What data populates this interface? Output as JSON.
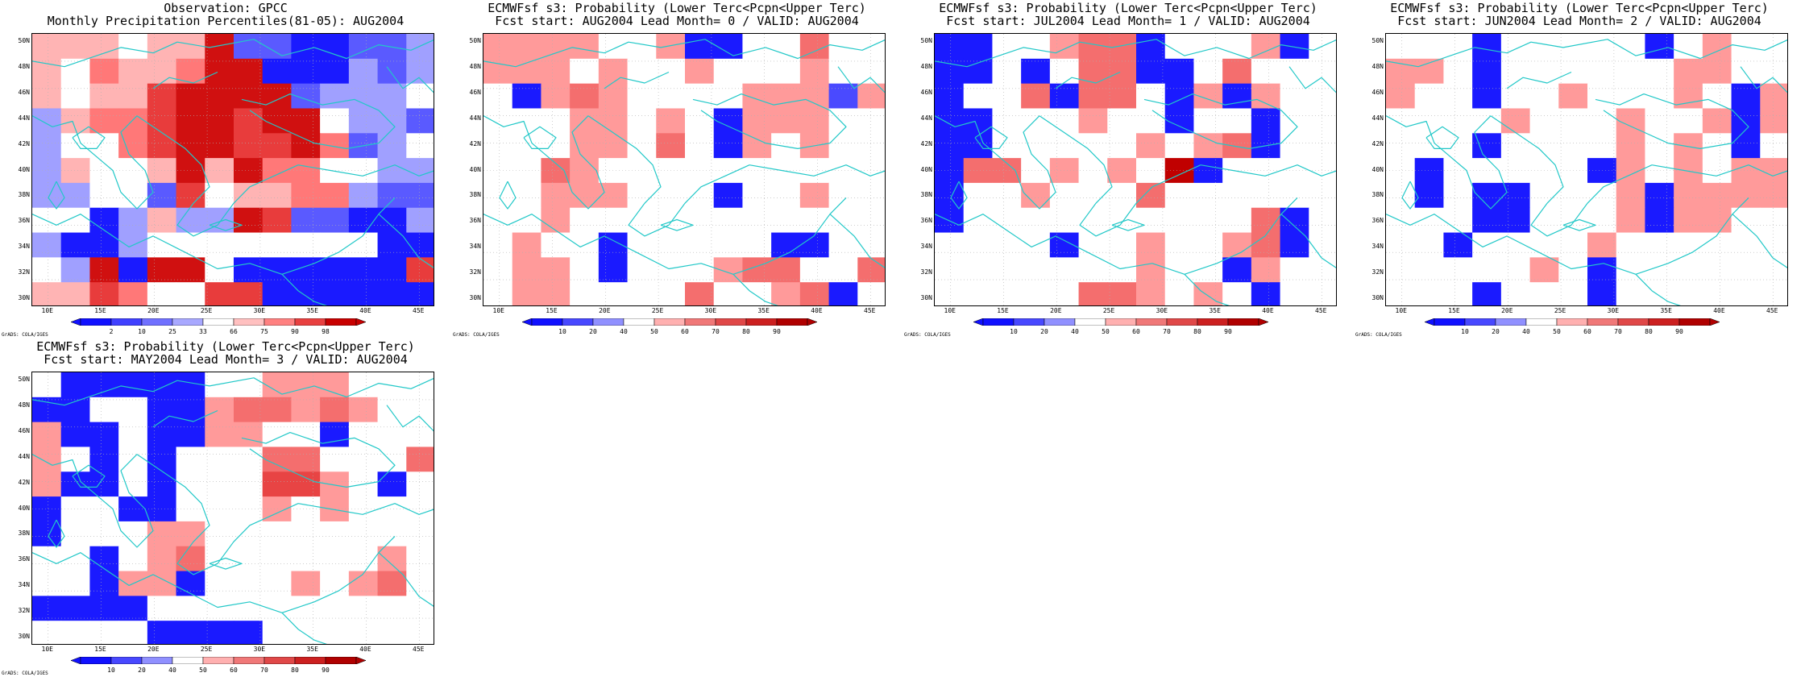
{
  "map_common": {
    "lat_labels": [
      "50N",
      "48N",
      "46N",
      "44N",
      "42N",
      "40N",
      "38N",
      "36N",
      "34N",
      "32N",
      "30N"
    ],
    "lon_labels": [
      "10E",
      "15E",
      "20E",
      "25E",
      "30E",
      "35E",
      "40E",
      "45E"
    ],
    "grads_credit": "GrADS: COLA/IGES",
    "colors": {
      "coast": "#22c8c8",
      "grid": "#b0b0b0",
      "prob_scale": [
        "#1a1aff",
        "#4a4aff",
        "#ffffff",
        "#ff9a9a",
        "#f46e6e",
        "#e84444",
        "#d41e1e",
        "#c00000"
      ],
      "obs_scale": [
        "#1a1aff",
        "#5a5aff",
        "#a0a0ff",
        "#ffffff",
        "#ffb4b4",
        "#ff7878",
        "#e83c3c",
        "#d01010"
      ]
    }
  },
  "panels": [
    {
      "title1": "Observation: GPCC",
      "title2": "Monthly Precipitation Percentiles(81-05): AUG2004",
      "colorbar_type": "obs",
      "colorbar_labels": [
        "2",
        "10",
        "25",
        "33",
        "66",
        "75",
        "90",
        "98"
      ]
    },
    {
      "title1": "ECMWFsf s3: Probability (Lower Terc<Pcpn<Upper Terc)",
      "title2": "Fcst start: AUG2004  Lead Month= 0 / VALID: AUG2004",
      "colorbar_type": "prob",
      "colorbar_labels": [
        "10",
        "20",
        "40",
        "50",
        "60",
        "70",
        "80",
        "90"
      ]
    },
    {
      "title1": "ECMWFsf s3: Probability (Lower Terc<Pcpn<Upper Terc)",
      "title2": "Fcst start: JUL2004  Lead Month= 1 / VALID: AUG2004",
      "colorbar_type": "prob",
      "colorbar_labels": [
        "10",
        "20",
        "40",
        "50",
        "60",
        "70",
        "80",
        "90"
      ]
    },
    {
      "title1": "ECMWFsf s3: Probability (Lower Terc<Pcpn<Upper Terc)",
      "title2": "Fcst start: JUN2004  Lead Month= 2 / VALID: AUG2004",
      "colorbar_type": "prob",
      "colorbar_labels": [
        "10",
        "20",
        "40",
        "50",
        "60",
        "70",
        "80",
        "90"
      ]
    },
    {
      "title1": "ECMWFsf s3: Probability (Lower Terc<Pcpn<Upper Terc)",
      "title2": "Fcst start: MAY2004  Lead Month= 3 / VALID: AUG2004",
      "colorbar_type": "prob",
      "colorbar_labels": [
        "10",
        "20",
        "40",
        "50",
        "60",
        "70",
        "80",
        "90"
      ]
    }
  ]
}
